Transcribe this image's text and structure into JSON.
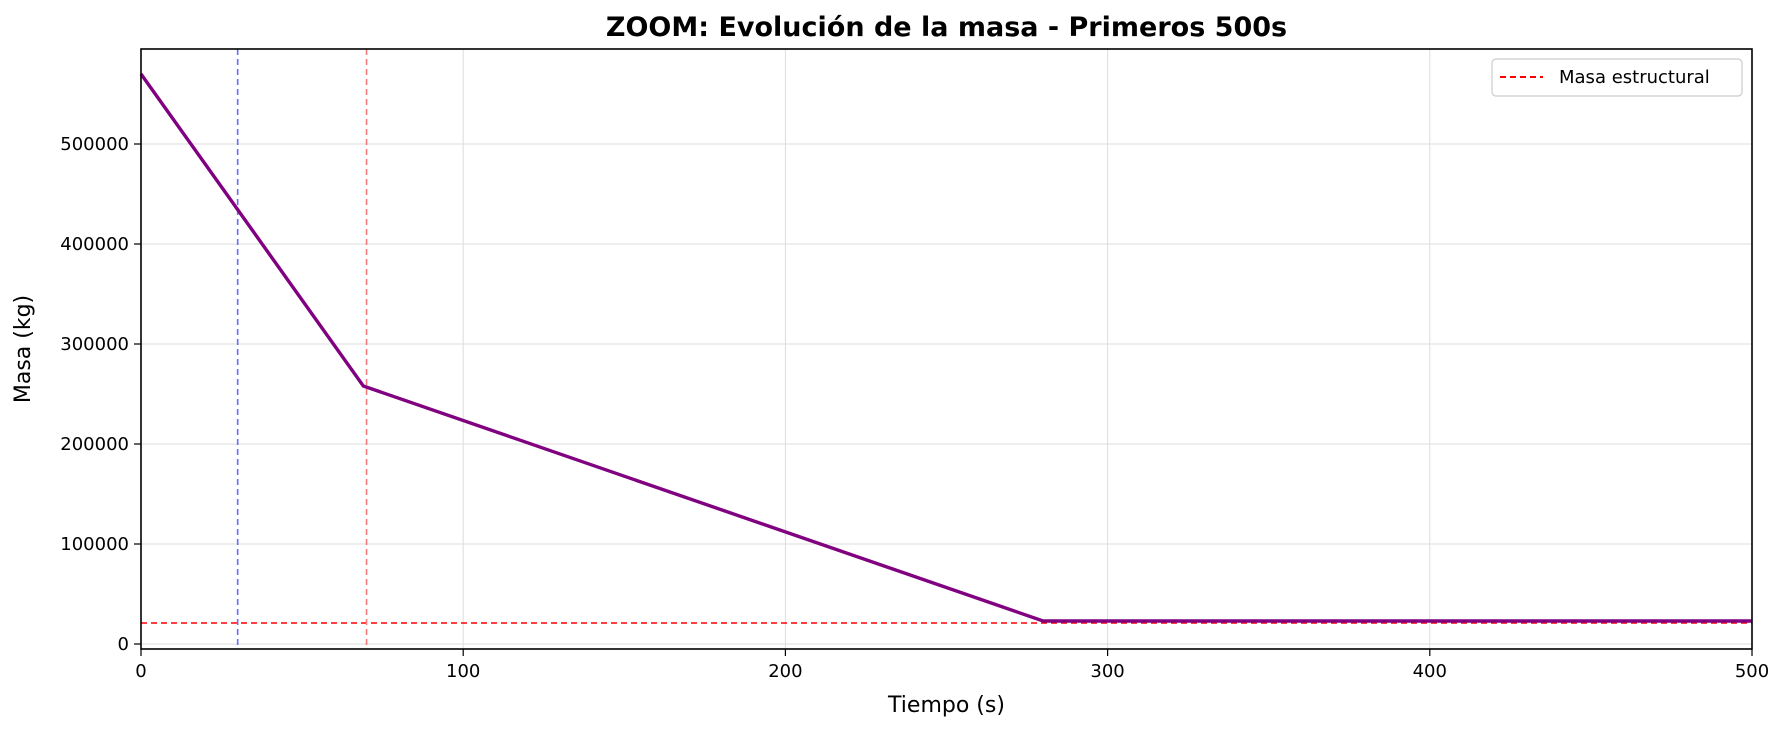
{
  "chart_data": {
    "type": "line",
    "title": "ZOOM: Evolución de la masa - Primeros 500s",
    "xlabel": "Tiempo (s)",
    "ylabel": "Masa (kg)",
    "xlim": [
      0,
      500
    ],
    "ylim": [
      -5000,
      595000
    ],
    "xticks": [
      0,
      100,
      200,
      300,
      400,
      500
    ],
    "yticks": [
      0,
      100000,
      200000,
      300000,
      400000,
      500000
    ],
    "grid": true,
    "legend_position": "top-right",
    "series": [
      {
        "color": "#800080",
        "x": [
          0,
          69,
          280,
          500
        ],
        "y": [
          570000,
          258000,
          23000,
          23000
        ]
      }
    ],
    "reference_lines": [
      {
        "orientation": "horizontal",
        "value": 21000,
        "color": "#ff0000",
        "style": "dashed",
        "name": "Masa estructural"
      },
      {
        "orientation": "vertical",
        "value": 30,
        "color": "#6b6bff",
        "style": "dashed"
      },
      {
        "orientation": "vertical",
        "value": 70,
        "color": "#f27a7a",
        "style": "dashed"
      }
    ],
    "legend": [
      "Masa estructural"
    ]
  }
}
